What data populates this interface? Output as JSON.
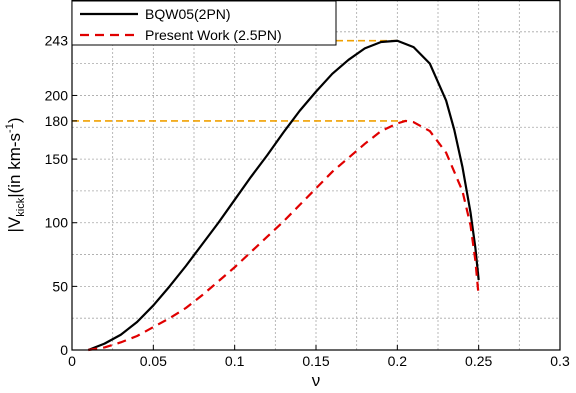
{
  "chart_data": {
    "type": "line",
    "xlabel": "ν",
    "ylabel": {
      "prefix": "|V",
      "subscript": "kick",
      "middle": "|(in km-s",
      "superscript": "-1",
      "suffix": ")"
    },
    "xlim": [
      0,
      0.3
    ],
    "ylim": [
      0,
      275
    ],
    "x_ticks": [
      0,
      0.05,
      0.1,
      0.15,
      0.2,
      0.25,
      0.3
    ],
    "x_tick_labels": [
      "0",
      "0.05",
      "0.1",
      "0.15",
      "0.2",
      "0.25",
      "0.3"
    ],
    "y_ticks": [
      0,
      50,
      100,
      150,
      180,
      200,
      243
    ],
    "y_tick_labels": [
      "0",
      "50",
      "100",
      "150",
      "180",
      "200",
      "243"
    ],
    "grid": true,
    "grid_x": [
      0.025,
      0.05,
      0.075,
      0.1,
      0.125,
      0.15,
      0.175,
      0.2,
      0.225,
      0.25,
      0.275
    ],
    "grid_y": [
      25,
      50,
      75,
      100,
      125,
      150,
      175,
      200,
      225,
      250
    ],
    "legend_position": "top-left",
    "series": [
      {
        "name": "BQW05(2PN)",
        "color": "#000000",
        "dash": "solid",
        "x": [
          0.01,
          0.02,
          0.03,
          0.04,
          0.05,
          0.06,
          0.07,
          0.08,
          0.09,
          0.1,
          0.11,
          0.12,
          0.13,
          0.14,
          0.15,
          0.16,
          0.17,
          0.18,
          0.19,
          0.2,
          0.21,
          0.22,
          0.23,
          0.235,
          0.24,
          0.245,
          0.248,
          0.25
        ],
        "y": [
          0,
          5,
          12,
          22,
          35,
          50,
          66,
          83,
          100,
          118,
          136,
          153,
          171,
          188,
          203,
          217,
          228,
          237,
          242,
          243,
          238,
          225,
          196,
          173,
          144,
          108,
          80,
          55
        ]
      },
      {
        "name": "Present Work (2.5PN)",
        "color": "#e00000",
        "dash": "dashed",
        "x": [
          0.01,
          0.02,
          0.03,
          0.04,
          0.05,
          0.06,
          0.07,
          0.08,
          0.09,
          0.1,
          0.11,
          0.12,
          0.13,
          0.14,
          0.15,
          0.16,
          0.17,
          0.18,
          0.19,
          0.2,
          0.205,
          0.21,
          0.22,
          0.23,
          0.24,
          0.245,
          0.248,
          0.25
        ],
        "y": [
          0,
          2,
          6,
          11,
          18,
          25,
          33,
          43,
          54,
          65,
          77,
          89,
          101,
          114,
          127,
          140,
          151,
          162,
          172,
          178,
          180,
          179,
          172,
          155,
          125,
          98,
          70,
          42
        ]
      }
    ],
    "reference_lines": [
      {
        "y": 243,
        "x_end": 0.2,
        "color": "#f0a000"
      },
      {
        "y": 180,
        "x_end": 0.205,
        "color": "#f0a000"
      }
    ]
  }
}
